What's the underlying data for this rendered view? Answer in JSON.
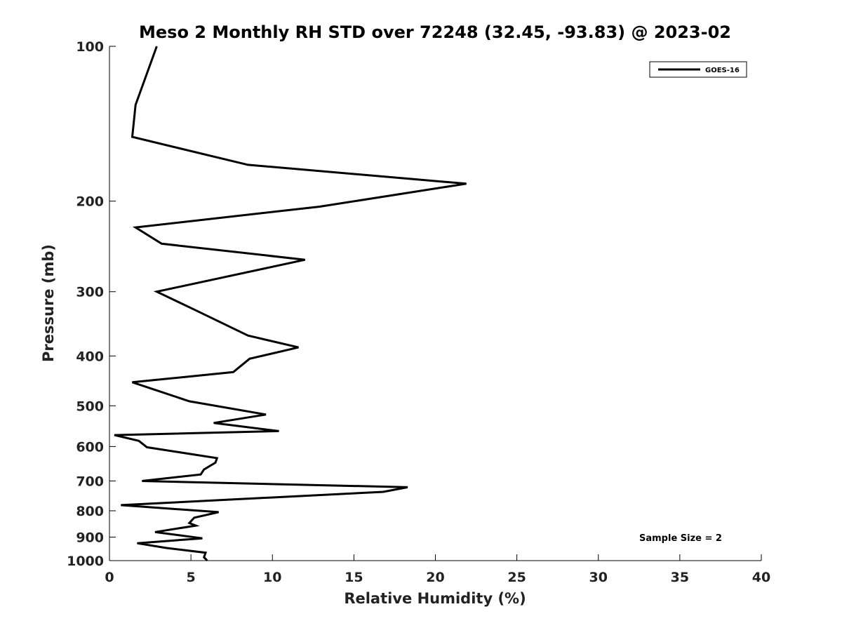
{
  "chart_data": {
    "type": "line",
    "title": "Meso 2 Monthly RH STD over 72248 (32.45, -93.83) @ 2023-02",
    "xlabel": "Relative Humidity (%)",
    "ylabel": "Pressure (mb)",
    "xlim": [
      0,
      40
    ],
    "ylim": [
      100,
      1000
    ],
    "y_scale": "log",
    "y_reversed": true,
    "grid": false,
    "x_ticks": [
      0,
      5,
      10,
      15,
      20,
      25,
      30,
      35,
      40
    ],
    "y_ticks": [
      100,
      200,
      300,
      400,
      500,
      600,
      700,
      800,
      900,
      1000
    ],
    "legend": {
      "position": "top-right"
    },
    "annotation": "Sample Size = 2",
    "series": [
      {
        "name": "GOES-16",
        "color": "#000000",
        "x": [
          2.9,
          1.6,
          1.4,
          8.5,
          21.9,
          12.9,
          1.6,
          3.2,
          12.0,
          2.9,
          5.2,
          8.5,
          11.6,
          8.6,
          7.6,
          1.4,
          4.9,
          9.6,
          6.4,
          10.4,
          0.3,
          1.8,
          2.3,
          6.6,
          6.5,
          5.8,
          5.6,
          2.0,
          18.3,
          16.8,
          0.7,
          6.7,
          5.2,
          4.9,
          5.3,
          2.8,
          5.7,
          1.7,
          3.5,
          5.9,
          5.8,
          6.0
        ],
        "y": [
          100,
          130,
          150,
          170,
          185,
          205,
          225,
          242,
          260,
          300,
          325,
          365,
          385,
          405,
          430,
          450,
          490,
          520,
          540,
          560,
          570,
          585,
          602,
          632,
          645,
          665,
          680,
          700,
          720,
          735,
          780,
          805,
          825,
          845,
          855,
          880,
          905,
          925,
          945,
          965,
          985,
          1000
        ]
      }
    ]
  }
}
